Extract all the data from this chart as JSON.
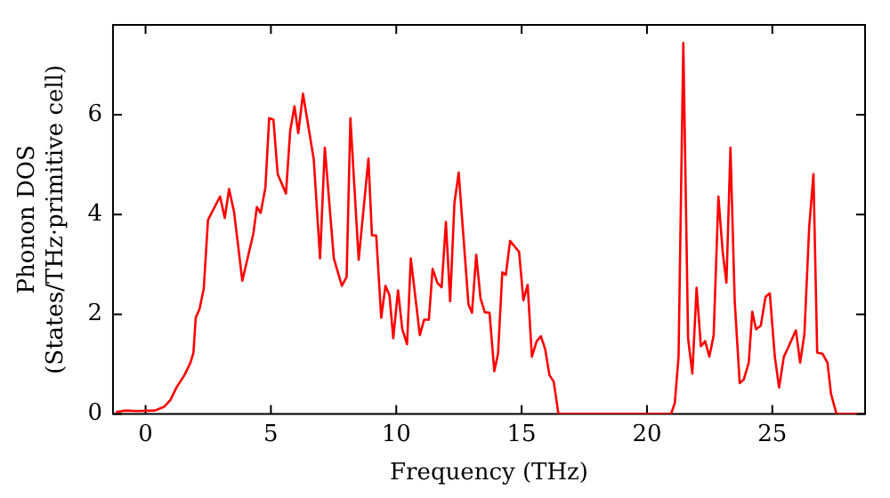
{
  "chart_data": {
    "type": "line",
    "xlabel": "Frequency (THz)",
    "ylabel": "Phonon DOS\n(States/THz·primitive cell)",
    "xlim": [
      -1.3,
      28.7
    ],
    "ylim": [
      0,
      7.8
    ],
    "xticks": [
      0,
      5,
      10,
      15,
      20,
      25
    ],
    "yticks": [
      0,
      2,
      4,
      6
    ],
    "grid": false,
    "legend": false,
    "marker": "none",
    "line_style": "solid",
    "series": [
      {
        "color": "#ff0000",
        "x": [
          -1.18,
          -0.82,
          -0.34,
          0.38,
          0.75,
          0.99,
          1.23,
          1.55,
          1.79,
          1.91,
          2.0,
          2.15,
          2.32,
          2.49,
          2.97,
          3.16,
          3.33,
          3.53,
          3.86,
          4.3,
          4.44,
          4.59,
          4.78,
          4.93,
          5.1,
          5.27,
          5.6,
          5.77,
          5.94,
          6.09,
          6.28,
          6.71,
          6.96,
          7.15,
          7.51,
          7.83,
          8.02,
          8.17,
          8.5,
          8.89,
          9.03,
          9.2,
          9.4,
          9.57,
          9.73,
          9.88,
          10.07,
          10.24,
          10.43,
          10.58,
          10.94,
          11.11,
          11.3,
          11.45,
          11.64,
          11.81,
          11.98,
          12.15,
          12.32,
          12.49,
          12.88,
          13.02,
          13.19,
          13.36,
          13.53,
          13.72,
          13.91,
          14.06,
          14.23,
          14.37,
          14.54,
          14.9,
          15.07,
          15.24,
          15.41,
          15.6,
          15.77,
          15.94,
          16.11,
          16.28,
          16.47,
          20.96,
          21.11,
          21.26,
          21.45,
          21.64,
          21.81,
          21.98,
          22.15,
          22.32,
          22.49,
          22.66,
          22.85,
          23.02,
          23.17,
          23.33,
          23.5,
          23.7,
          23.86,
          24.06,
          24.2,
          24.35,
          24.54,
          24.73,
          24.9,
          25.1,
          25.27,
          25.46,
          25.63,
          25.8,
          25.94,
          26.11,
          26.28,
          26.47,
          26.64,
          26.79,
          27.0,
          27.2,
          27.34,
          27.56,
          28.4
        ],
        "values": [
          0.04,
          0.07,
          0.06,
          0.07,
          0.15,
          0.28,
          0.53,
          0.78,
          1.03,
          1.23,
          1.93,
          2.1,
          2.51,
          3.89,
          4.36,
          3.93,
          4.51,
          4.05,
          2.67,
          3.62,
          4.15,
          4.03,
          4.54,
          5.93,
          5.9,
          4.81,
          4.42,
          5.68,
          6.17,
          5.63,
          6.42,
          5.1,
          3.12,
          5.34,
          3.12,
          2.57,
          2.75,
          5.93,
          3.09,
          5.12,
          3.58,
          3.58,
          1.93,
          2.57,
          2.38,
          1.52,
          2.48,
          1.7,
          1.4,
          3.12,
          1.58,
          1.89,
          1.89,
          2.91,
          2.63,
          2.54,
          3.85,
          2.26,
          4.23,
          4.84,
          2.2,
          2.03,
          3.19,
          2.32,
          2.04,
          2.03,
          0.86,
          1.21,
          2.84,
          2.79,
          3.47,
          3.25,
          2.28,
          2.59,
          1.15,
          1.46,
          1.56,
          1.3,
          0.78,
          0.65,
          0,
          0,
          0.22,
          1.15,
          7.44,
          1.52,
          0.81,
          2.53,
          1.36,
          1.46,
          1.15,
          1.58,
          4.36,
          3.25,
          2.63,
          5.34,
          2.26,
          0.62,
          0.69,
          1.03,
          2.05,
          1.7,
          1.77,
          2.35,
          2.42,
          1.15,
          0.53,
          1.15,
          1.33,
          1.52,
          1.68,
          1.03,
          1.6,
          3.74,
          4.81,
          1.23,
          1.21,
          1.03,
          0.41,
          0,
          0
        ]
      }
    ]
  }
}
